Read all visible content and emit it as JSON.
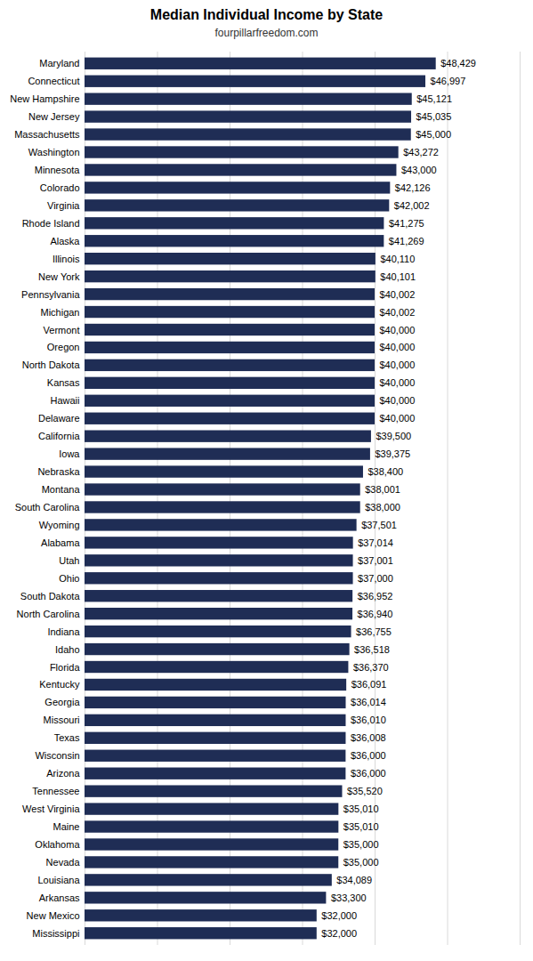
{
  "chart_data": {
    "type": "bar",
    "orientation": "horizontal",
    "title": "Median Individual Income by State",
    "subtitle": "fourpillarfreedom.com",
    "categories": [
      "Maryland",
      "Connecticut",
      "New Hampshire",
      "New Jersey",
      "Massachusetts",
      "Washington",
      "Minnesota",
      "Colorado",
      "Virginia",
      "Rhode Island",
      "Alaska",
      "Illinois",
      "New York",
      "Pennsylvania",
      "Michigan",
      "Vermont",
      "Oregon",
      "North Dakota",
      "Kansas",
      "Hawaii",
      "Delaware",
      "California",
      "Iowa",
      "Nebraska",
      "Montana",
      "South Carolina",
      "Wyoming",
      "Alabama",
      "Utah",
      "Ohio",
      "South Dakota",
      "North Carolina",
      "Indiana",
      "Idaho",
      "Florida",
      "Kentucky",
      "Georgia",
      "Missouri",
      "Texas",
      "Wisconsin",
      "Arizona",
      "Tennessee",
      "West Virginia",
      "Maine",
      "Oklahoma",
      "Nevada",
      "Louisiana",
      "Arkansas",
      "New Mexico",
      "Mississippi"
    ],
    "values": [
      48429,
      46997,
      45121,
      45035,
      45000,
      43272,
      43000,
      42126,
      42002,
      41275,
      41269,
      40110,
      40101,
      40002,
      40002,
      40000,
      40000,
      40000,
      40000,
      40000,
      40000,
      39500,
      39375,
      38400,
      38001,
      38000,
      37501,
      37014,
      37001,
      37000,
      36952,
      36940,
      36755,
      36518,
      36370,
      36091,
      36014,
      36010,
      36008,
      36000,
      36000,
      35520,
      35010,
      35010,
      35000,
      35000,
      34089,
      33300,
      32000,
      32000
    ],
    "value_labels": [
      "$48,429",
      "$46,997",
      "$45,121",
      "$45,035",
      "$45,000",
      "$43,272",
      "$43,000",
      "$42,126",
      "$42,002",
      "$41,275",
      "$41,269",
      "$40,110",
      "$40,101",
      "$40,002",
      "$40,002",
      "$40,000",
      "$40,000",
      "$40,000",
      "$40,000",
      "$40,000",
      "$40,000",
      "$39,500",
      "$39,375",
      "$38,400",
      "$38,001",
      "$38,000",
      "$37,501",
      "$37,014",
      "$37,001",
      "$37,000",
      "$36,952",
      "$36,940",
      "$36,755",
      "$36,518",
      "$36,370",
      "$36,091",
      "$36,014",
      "$36,010",
      "$36,008",
      "$36,000",
      "$36,000",
      "$35,520",
      "$35,010",
      "$35,010",
      "$35,000",
      "$35,000",
      "$34,089",
      "$33,300",
      "$32,000",
      "$32,000"
    ],
    "color": "#1f2d55",
    "xlim": [
      0,
      60000
    ],
    "xticks": [
      0,
      10000,
      20000,
      30000,
      40000,
      50000,
      60000
    ],
    "grid": true,
    "data_labels": true,
    "tick_labels": "y"
  }
}
